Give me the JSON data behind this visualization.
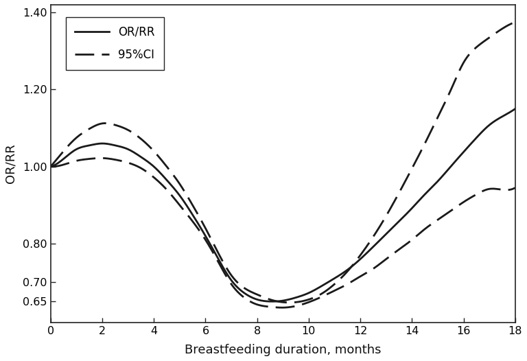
{
  "xlabel": "Breastfeeding duration, months",
  "ylabel": "OR/RR",
  "xlim": [
    0,
    18
  ],
  "ylim": [
    0.595,
    1.42
  ],
  "yticks": [
    0.65,
    0.7,
    0.8,
    1.0,
    1.2,
    1.4
  ],
  "xticks": [
    0,
    2,
    4,
    6,
    8,
    10,
    12,
    14,
    16,
    18
  ],
  "legend_labels": [
    "OR/RR",
    "95%CI"
  ],
  "line_color": "#1a1a1a",
  "background_color": "#ffffff",
  "or_rr_x": [
    0,
    0.5,
    1,
    1.5,
    2,
    2.5,
    3,
    3.5,
    4,
    4.5,
    5,
    5.5,
    6,
    6.5,
    7,
    7.5,
    8,
    8.5,
    9,
    9.5,
    10,
    10.5,
    11,
    11.5,
    12,
    12.5,
    13,
    13.5,
    14,
    14.5,
    15,
    15.5,
    16,
    16.5,
    17,
    17.5,
    18
  ],
  "or_rr_y": [
    1.0,
    1.02,
    1.045,
    1.055,
    1.06,
    1.055,
    1.045,
    1.025,
    1.0,
    0.965,
    0.925,
    0.875,
    0.82,
    0.76,
    0.705,
    0.672,
    0.655,
    0.65,
    0.652,
    0.66,
    0.672,
    0.69,
    0.71,
    0.732,
    0.76,
    0.792,
    0.825,
    0.858,
    0.892,
    0.928,
    0.962,
    1.0,
    1.038,
    1.075,
    1.108,
    1.13,
    1.15
  ],
  "ci_upper_x": [
    0,
    0.5,
    1,
    1.5,
    2,
    2.5,
    3,
    3.5,
    4,
    4.5,
    5,
    5.5,
    6,
    6.5,
    7,
    7.5,
    8,
    8.5,
    9,
    9.5,
    10,
    10.5,
    11,
    11.5,
    12,
    12.5,
    13,
    13.5,
    14,
    14.5,
    15,
    15.5,
    16,
    16.5,
    17,
    17.5,
    18
  ],
  "ci_upper_y": [
    1.0,
    1.04,
    1.075,
    1.098,
    1.112,
    1.108,
    1.095,
    1.072,
    1.04,
    1.0,
    0.955,
    0.9,
    0.84,
    0.775,
    0.718,
    0.685,
    0.668,
    0.655,
    0.648,
    0.648,
    0.655,
    0.67,
    0.695,
    0.728,
    0.77,
    0.818,
    0.872,
    0.932,
    0.995,
    1.06,
    1.128,
    1.198,
    1.27,
    1.31,
    1.335,
    1.358,
    1.375
  ],
  "ci_lower_x": [
    0,
    0.5,
    1,
    1.5,
    2,
    2.5,
    3,
    3.5,
    4,
    4.5,
    5,
    5.5,
    6,
    6.5,
    7,
    7.5,
    8,
    8.5,
    9,
    9.5,
    10,
    10.5,
    11,
    11.5,
    12,
    12.5,
    13,
    13.5,
    14,
    14.5,
    15,
    15.5,
    16,
    16.5,
    17,
    17.5,
    18
  ],
  "ci_lower_y": [
    1.0,
    1.005,
    1.015,
    1.02,
    1.022,
    1.018,
    1.01,
    0.996,
    0.972,
    0.94,
    0.9,
    0.858,
    0.81,
    0.752,
    0.695,
    0.66,
    0.642,
    0.636,
    0.634,
    0.638,
    0.648,
    0.662,
    0.678,
    0.695,
    0.715,
    0.735,
    0.76,
    0.785,
    0.81,
    0.838,
    0.862,
    0.885,
    0.908,
    0.928,
    0.942,
    0.94,
    0.945
  ]
}
